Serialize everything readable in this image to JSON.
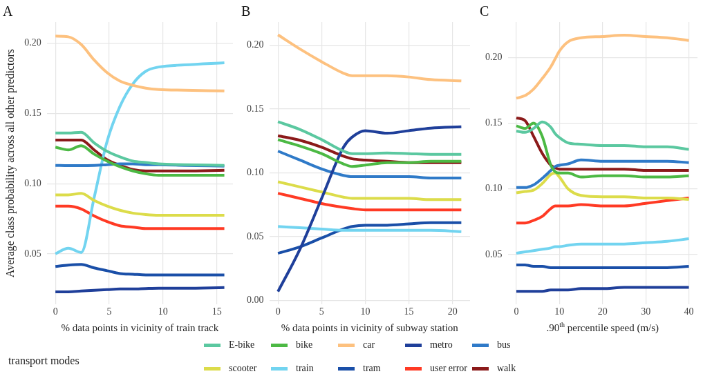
{
  "chart_data": [
    {
      "type": "line",
      "title": "A",
      "xlabel": "% data points in vicinity of train track",
      "ylabel": "Average class probability across all other predictors",
      "legend_title": "transport modes",
      "legend": "bottom",
      "grid": true,
      "marker": "none",
      "line_style": "solid",
      "x": [
        0,
        1.2,
        2.4,
        3.6,
        4.8,
        6,
        7.2,
        8.4,
        9.6,
        12,
        15.7
      ],
      "xlim": [
        -0.8,
        16.5
      ],
      "xticks": [
        0,
        5,
        10,
        15
      ],
      "ylim": [
        0.014,
        0.215
      ],
      "yticks": [
        {
          "value": 0.05,
          "label": "0.05"
        },
        {
          "value": 0.1,
          "label": "0.10"
        },
        {
          "value": 0.15,
          "label": "0.15"
        },
        {
          "value": 0.2,
          "label": "0.20"
        }
      ],
      "series": [
        {
          "name": "E-bike",
          "color": "#5bc8a0",
          "values": [
            0.136,
            0.136,
            0.1365,
            0.129,
            0.123,
            0.119,
            0.116,
            0.115,
            0.114,
            0.1135,
            0.113
          ]
        },
        {
          "name": "bike",
          "color": "#4cb944",
          "values": [
            0.126,
            0.124,
            0.127,
            0.121,
            0.116,
            0.112,
            0.109,
            0.107,
            0.106,
            0.106,
            0.106
          ]
        },
        {
          "name": "car",
          "color": "#fdc17f",
          "values": [
            0.205,
            0.2045,
            0.199,
            0.188,
            0.179,
            0.173,
            0.17,
            0.168,
            0.167,
            0.1665,
            0.166
          ]
        },
        {
          "name": "metro",
          "color": "#1f3f9a",
          "values": [
            0.023,
            0.023,
            0.0235,
            0.024,
            0.0245,
            0.025,
            0.025,
            0.0253,
            0.0255,
            0.0255,
            0.026
          ]
        },
        {
          "name": "bus",
          "color": "#2f7ac8",
          "values": [
            0.113,
            0.1128,
            0.1128,
            0.113,
            0.1135,
            0.114,
            0.114,
            0.1135,
            0.1135,
            0.113,
            0.1125
          ]
        },
        {
          "name": "scooter",
          "color": "#dcdc4a",
          "values": [
            0.092,
            0.092,
            0.093,
            0.088,
            0.084,
            0.081,
            0.079,
            0.078,
            0.0775,
            0.0775,
            0.0775
          ]
        },
        {
          "name": "train",
          "color": "#72d4f0",
          "values": [
            0.05,
            0.054,
            0.051,
            0.09,
            0.13,
            0.155,
            0.171,
            0.18,
            0.183,
            0.1845,
            0.186
          ]
        },
        {
          "name": "tram",
          "color": "#1a4fa8",
          "values": [
            0.041,
            0.042,
            0.0425,
            0.04,
            0.038,
            0.036,
            0.0355,
            0.035,
            0.035,
            0.035,
            0.035
          ]
        },
        {
          "name": "user error",
          "color": "#ff3a24",
          "values": [
            0.084,
            0.084,
            0.082,
            0.077,
            0.073,
            0.07,
            0.069,
            0.068,
            0.068,
            0.068,
            0.068
          ]
        },
        {
          "name": "walk",
          "color": "#8b1a1a",
          "values": [
            0.131,
            0.131,
            0.131,
            0.124,
            0.117,
            0.113,
            0.11,
            0.109,
            0.109,
            0.109,
            0.1095
          ]
        }
      ]
    },
    {
      "type": "line",
      "title": "B",
      "xlabel": "% data points in vicinity of subway station",
      "grid": true,
      "marker": "none",
      "line_style": "solid",
      "x": [
        0,
        2.5,
        5,
        7.5,
        8.5,
        10,
        12.5,
        15,
        17.5,
        21
      ],
      "xlim": [
        -1,
        22
      ],
      "xticks": [
        0,
        5,
        10,
        15,
        20
      ],
      "ylim": [
        -0.003,
        0.218
      ],
      "yticks": [
        {
          "value": 0,
          "label": "0.00"
        },
        {
          "value": 0.05,
          "label": "0.05"
        },
        {
          "value": 0.1,
          "label": "0.10"
        },
        {
          "value": 0.15,
          "label": "0.15"
        },
        {
          "value": 0.2,
          "label": "0.20"
        }
      ],
      "series": [
        {
          "name": "E-bike",
          "color": "#5bc8a0",
          "values": [
            0.14,
            0.134,
            0.126,
            0.117,
            0.115,
            0.115,
            0.1155,
            0.115,
            0.1145,
            0.1145
          ]
        },
        {
          "name": "bike",
          "color": "#4cb944",
          "values": [
            0.126,
            0.121,
            0.115,
            0.107,
            0.105,
            0.106,
            0.108,
            0.108,
            0.109,
            0.109
          ]
        },
        {
          "name": "car",
          "color": "#fdc17f",
          "values": [
            0.208,
            0.197,
            0.187,
            0.178,
            0.176,
            0.176,
            0.176,
            0.175,
            0.173,
            0.172
          ]
        },
        {
          "name": "metro",
          "color": "#1f3f9a",
          "values": [
            0.007,
            0.04,
            0.08,
            0.12,
            0.128,
            0.133,
            0.131,
            0.133,
            0.135,
            0.136
          ]
        },
        {
          "name": "bus",
          "color": "#2f7ac8",
          "values": [
            0.117,
            0.11,
            0.103,
            0.098,
            0.097,
            0.097,
            0.097,
            0.097,
            0.096,
            0.096
          ]
        },
        {
          "name": "scooter",
          "color": "#dcdc4a",
          "values": [
            0.093,
            0.089,
            0.085,
            0.081,
            0.08,
            0.08,
            0.08,
            0.08,
            0.079,
            0.079
          ]
        },
        {
          "name": "train",
          "color": "#72d4f0",
          "values": [
            0.058,
            0.057,
            0.056,
            0.055,
            0.055,
            0.055,
            0.055,
            0.055,
            0.055,
            0.054
          ]
        },
        {
          "name": "tram",
          "color": "#1a4fa8",
          "values": [
            0.037,
            0.042,
            0.049,
            0.056,
            0.058,
            0.059,
            0.059,
            0.06,
            0.061,
            0.061
          ]
        },
        {
          "name": "user error",
          "color": "#ff3a24",
          "values": [
            0.084,
            0.08,
            0.076,
            0.073,
            0.072,
            0.071,
            0.071,
            0.071,
            0.071,
            0.071
          ]
        },
        {
          "name": "walk",
          "color": "#8b1a1a",
          "values": [
            0.129,
            0.1255,
            0.12,
            0.113,
            0.111,
            0.11,
            0.109,
            0.108,
            0.108,
            0.108
          ]
        }
      ]
    },
    {
      "type": "line",
      "title": "C",
      "xlabel": ".90$^{th}$ percentile speed (m/s)",
      "grid": true,
      "marker": "none",
      "line_style": "solid",
      "x": [
        0,
        2,
        4,
        6,
        8,
        9,
        10,
        12,
        15,
        20,
        25,
        30,
        35,
        40
      ],
      "xlim": [
        -2,
        42
      ],
      "xticks": [
        0,
        10,
        20,
        30,
        40
      ],
      "ylim": [
        0.012,
        0.227
      ],
      "yticks": [
        {
          "value": 0.05,
          "label": "0.05"
        },
        {
          "value": 0.1,
          "label": "0.10"
        },
        {
          "value": 0.15,
          "label": "0.15"
        },
        {
          "value": 0.2,
          "label": "0.20"
        }
      ],
      "series": [
        {
          "name": "E-bike",
          "color": "#5bc8a0",
          "values": [
            0.144,
            0.143,
            0.146,
            0.151,
            0.147,
            0.142,
            0.139,
            0.135,
            0.134,
            0.133,
            0.133,
            0.132,
            0.132,
            0.13
          ]
        },
        {
          "name": "bike",
          "color": "#4cb944",
          "values": [
            0.148,
            0.146,
            0.15,
            0.14,
            0.118,
            0.113,
            0.112,
            0.112,
            0.109,
            0.11,
            0.11,
            0.109,
            0.109,
            0.11
          ]
        },
        {
          "name": "car",
          "color": "#fdc17f",
          "values": [
            0.169,
            0.171,
            0.176,
            0.184,
            0.193,
            0.199,
            0.205,
            0.212,
            0.215,
            0.216,
            0.217,
            0.216,
            0.215,
            0.213
          ]
        },
        {
          "name": "metro",
          "color": "#1f3f9a",
          "values": [
            0.022,
            0.022,
            0.022,
            0.022,
            0.023,
            0.023,
            0.023,
            0.023,
            0.024,
            0.024,
            0.025,
            0.025,
            0.025,
            0.025
          ]
        },
        {
          "name": "bus",
          "color": "#2f7ac8",
          "values": [
            0.101,
            0.101,
            0.103,
            0.108,
            0.114,
            0.117,
            0.118,
            0.119,
            0.122,
            0.121,
            0.121,
            0.121,
            0.121,
            0.12
          ]
        },
        {
          "name": "scooter",
          "color": "#dcdc4a",
          "values": [
            0.097,
            0.098,
            0.099,
            0.104,
            0.111,
            0.112,
            0.109,
            0.1,
            0.095,
            0.094,
            0.094,
            0.093,
            0.093,
            0.092
          ]
        },
        {
          "name": "train",
          "color": "#72d4f0",
          "values": [
            0.051,
            0.052,
            0.053,
            0.054,
            0.055,
            0.056,
            0.056,
            0.057,
            0.058,
            0.058,
            0.058,
            0.059,
            0.06,
            0.062
          ]
        },
        {
          "name": "tram",
          "color": "#1a4fa8",
          "values": [
            0.042,
            0.042,
            0.041,
            0.041,
            0.04,
            0.04,
            0.04,
            0.04,
            0.04,
            0.04,
            0.04,
            0.04,
            0.04,
            0.041
          ]
        },
        {
          "name": "user error",
          "color": "#ff3a24",
          "values": [
            0.074,
            0.074,
            0.076,
            0.079,
            0.085,
            0.087,
            0.087,
            0.087,
            0.088,
            0.087,
            0.087,
            0.089,
            0.091,
            0.093
          ]
        },
        {
          "name": "walk",
          "color": "#8b1a1a",
          "values": [
            0.154,
            0.152,
            0.14,
            0.127,
            0.118,
            0.116,
            0.115,
            0.115,
            0.115,
            0.115,
            0.115,
            0.114,
            0.114,
            0.114
          ]
        }
      ]
    }
  ]
}
